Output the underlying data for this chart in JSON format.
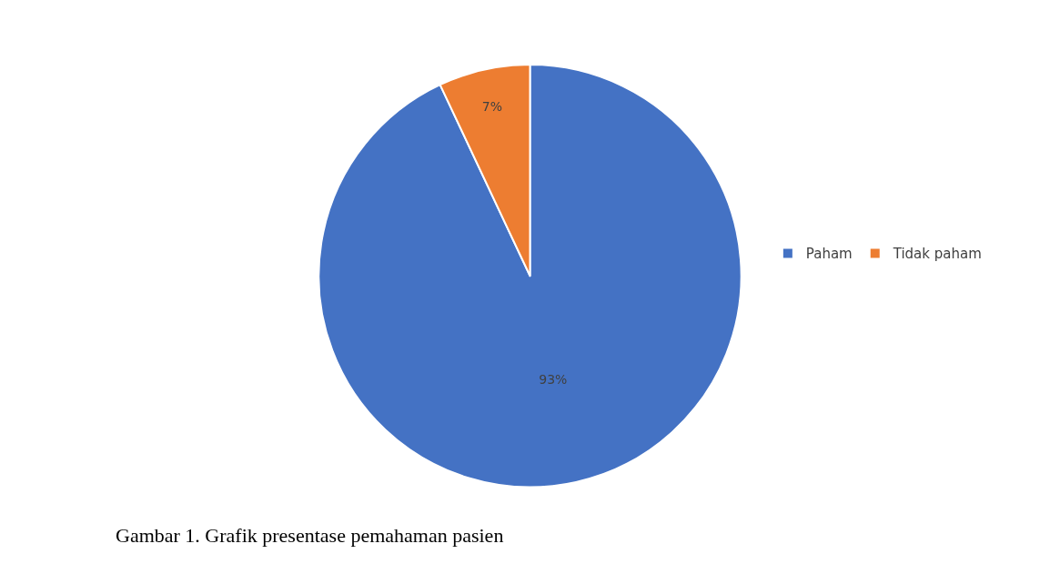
{
  "chart_data": {
    "type": "pie",
    "categories": [
      "Paham",
      "Tidak paham"
    ],
    "values": [
      93,
      7
    ],
    "colors": [
      "#4472c4",
      "#ed7d31"
    ],
    "value_labels": [
      "93%",
      "7%"
    ],
    "legend": "right",
    "annotations": [
      "Gambar 1. Grafik presentase pemahaman pasien"
    ]
  }
}
